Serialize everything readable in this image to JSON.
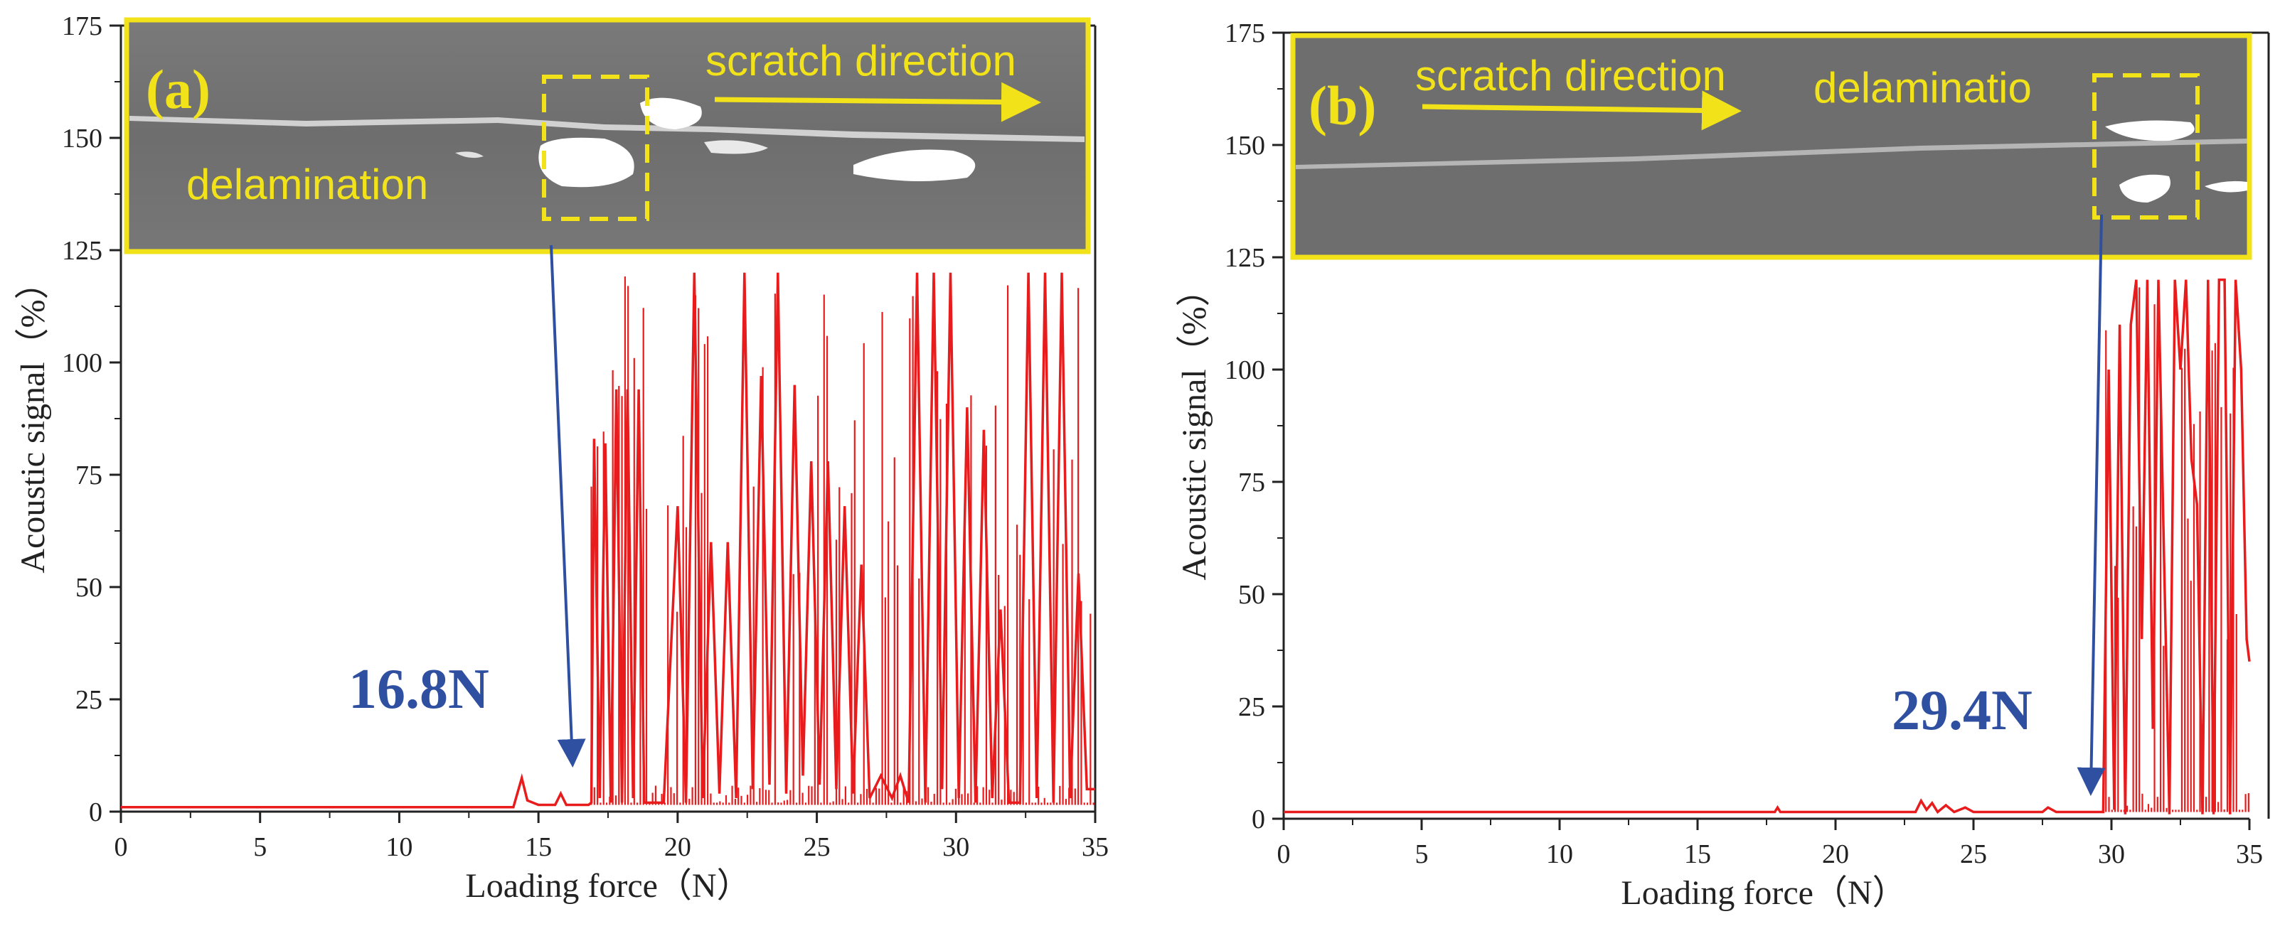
{
  "colors": {
    "signal": "#e81c1c",
    "arrow": "#2f4fa0",
    "inset_border": "#f2e21a",
    "axis": "#222222"
  },
  "chart_data": [
    {
      "type": "line",
      "panel": "(a)",
      "xlabel": "Loading force（N）",
      "ylabel": "Acoustic signal（%）",
      "xlim": [
        0,
        35
      ],
      "ylim": [
        0,
        175
      ],
      "x_ticks": [
        0,
        5,
        10,
        15,
        20,
        25,
        30,
        35
      ],
      "y_ticks": [
        0,
        25,
        50,
        75,
        100,
        125,
        150,
        175
      ],
      "critical_load_label": "16.8N",
      "critical_load": 16.8,
      "inset_labels": {
        "direction": "scratch direction",
        "feature": "delamination"
      },
      "signal_onset": 16.9,
      "signal_max": 120,
      "series": [
        {
          "name": "Acoustic signal",
          "points": [
            [
              0,
              1
            ],
            [
              14.1,
              1
            ],
            [
              14.4,
              7.5
            ],
            [
              14.6,
              2.5
            ],
            [
              15.0,
              1.5
            ],
            [
              15.6,
              1.5
            ],
            [
              15.8,
              4
            ],
            [
              16.0,
              1.5
            ],
            [
              16.8,
              1.5
            ],
            [
              16.9,
              2
            ],
            [
              17.0,
              83
            ],
            [
              17.2,
              3
            ],
            [
              17.4,
              82
            ],
            [
              17.6,
              2
            ],
            [
              17.8,
              94
            ],
            [
              18.0,
              2
            ],
            [
              18.2,
              94
            ],
            [
              18.4,
              3
            ],
            [
              18.6,
              94
            ],
            [
              18.8,
              2
            ],
            [
              19.5,
              2
            ],
            [
              20.0,
              68
            ],
            [
              20.3,
              2
            ],
            [
              20.6,
              120
            ],
            [
              20.9,
              3
            ],
            [
              21.2,
              60
            ],
            [
              21.5,
              4
            ],
            [
              21.8,
              60
            ],
            [
              22.1,
              3
            ],
            [
              22.4,
              120
            ],
            [
              22.7,
              5
            ],
            [
              23.0,
              97
            ],
            [
              23.3,
              6
            ],
            [
              23.6,
              120
            ],
            [
              23.9,
              4
            ],
            [
              24.2,
              95
            ],
            [
              24.5,
              8
            ],
            [
              24.8,
              78
            ],
            [
              25.1,
              6
            ],
            [
              25.4,
              78
            ],
            [
              25.7,
              5
            ],
            [
              26.0,
              68
            ],
            [
              26.3,
              4
            ],
            [
              26.6,
              55
            ],
            [
              26.9,
              3
            ],
            [
              27.3,
              8
            ],
            [
              27.7,
              3
            ],
            [
              28.0,
              8
            ],
            [
              28.3,
              2
            ],
            [
              28.6,
              120
            ],
            [
              28.9,
              2
            ],
            [
              29.2,
              120
            ],
            [
              29.5,
              5
            ],
            [
              29.8,
              120
            ],
            [
              30.1,
              3
            ],
            [
              30.4,
              90
            ],
            [
              30.7,
              2
            ],
            [
              31.0,
              85
            ],
            [
              31.3,
              3
            ],
            [
              31.6,
              45
            ],
            [
              31.9,
              2
            ],
            [
              32.3,
              2
            ],
            [
              32.6,
              120
            ],
            [
              32.9,
              3
            ],
            [
              33.2,
              120
            ],
            [
              33.5,
              2
            ],
            [
              33.8,
              120
            ],
            [
              34.1,
              3
            ],
            [
              34.4,
              53
            ],
            [
              34.7,
              5
            ],
            [
              35,
              5
            ]
          ]
        }
      ]
    },
    {
      "type": "line",
      "panel": "(b)",
      "xlabel": "Loading force（N）",
      "ylabel": "Acoustic signal（%）",
      "xlim": [
        0,
        35
      ],
      "ylim": [
        0,
        175
      ],
      "x_ticks": [
        0,
        5,
        10,
        15,
        20,
        25,
        30,
        35
      ],
      "y_ticks": [
        0,
        25,
        50,
        75,
        100,
        125,
        150,
        175
      ],
      "critical_load_label": "29.4N",
      "critical_load": 29.4,
      "inset_labels": {
        "direction": "scratch direction",
        "feature": "delaminatio"
      },
      "signal_onset": 29.8,
      "signal_max": 120,
      "series": [
        {
          "name": "Acoustic signal",
          "points": [
            [
              0,
              1.5
            ],
            [
              17.8,
              1.5
            ],
            [
              17.9,
              2.5
            ],
            [
              18.0,
              1.5
            ],
            [
              22.9,
              1.5
            ],
            [
              23.1,
              4
            ],
            [
              23.3,
              2
            ],
            [
              23.5,
              3.5
            ],
            [
              23.7,
              1.5
            ],
            [
              24.0,
              3
            ],
            [
              24.3,
              1.5
            ],
            [
              24.7,
              2.5
            ],
            [
              25.0,
              1.5
            ],
            [
              27.5,
              1.5
            ],
            [
              27.7,
              2.5
            ],
            [
              28.0,
              1.5
            ],
            [
              29.7,
              1.5
            ],
            [
              29.9,
              100
            ],
            [
              30.1,
              2
            ],
            [
              30.3,
              110
            ],
            [
              30.5,
              1
            ],
            [
              30.7,
              110
            ],
            [
              30.9,
              120
            ],
            [
              31.1,
              40
            ],
            [
              31.3,
              120
            ],
            [
              31.5,
              20
            ],
            [
              31.7,
              120
            ],
            [
              31.9,
              60
            ],
            [
              32.1,
              1
            ],
            [
              32.3,
              120
            ],
            [
              32.5,
              100
            ],
            [
              32.7,
              120
            ],
            [
              32.9,
              80
            ],
            [
              33.1,
              70
            ],
            [
              33.3,
              1
            ],
            [
              33.5,
              120
            ],
            [
              33.7,
              1
            ],
            [
              33.9,
              120
            ],
            [
              34.1,
              120
            ],
            [
              34.3,
              1
            ],
            [
              34.5,
              120
            ],
            [
              34.7,
              100
            ],
            [
              34.9,
              40
            ],
            [
              35,
              35
            ]
          ]
        }
      ]
    }
  ]
}
